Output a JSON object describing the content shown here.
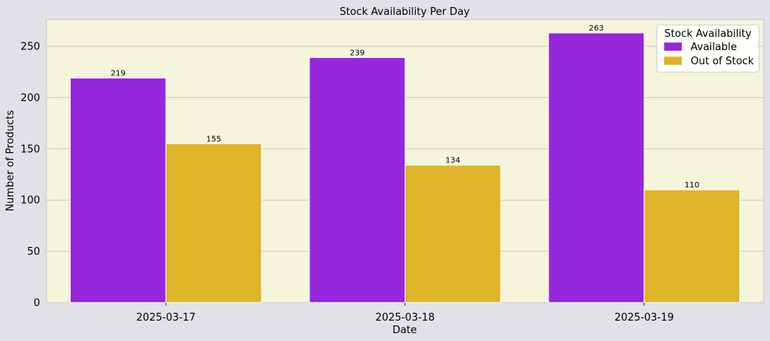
{
  "chart_data": {
    "type": "bar",
    "title": "Stock Availability Per Day",
    "xlabel": "Date",
    "ylabel": "Number of Products",
    "categories": [
      "2025-03-17",
      "2025-03-18",
      "2025-03-19"
    ],
    "series": [
      {
        "name": "Available",
        "values": [
          219,
          239,
          263
        ],
        "color": "#9527dd"
      },
      {
        "name": "Out of Stock",
        "values": [
          155,
          134,
          110
        ],
        "color": "#deb429"
      }
    ],
    "ylim": [
      0,
      276
    ],
    "yticks": [
      0,
      50,
      100,
      150,
      200,
      250
    ],
    "grid": true,
    "legend": {
      "title": "Stock Availability",
      "position": "top-right"
    },
    "colors": {
      "plot_background": "#f5f5dc",
      "figure_background": "#e3e1e8",
      "grid": "#c9c9c9"
    }
  }
}
